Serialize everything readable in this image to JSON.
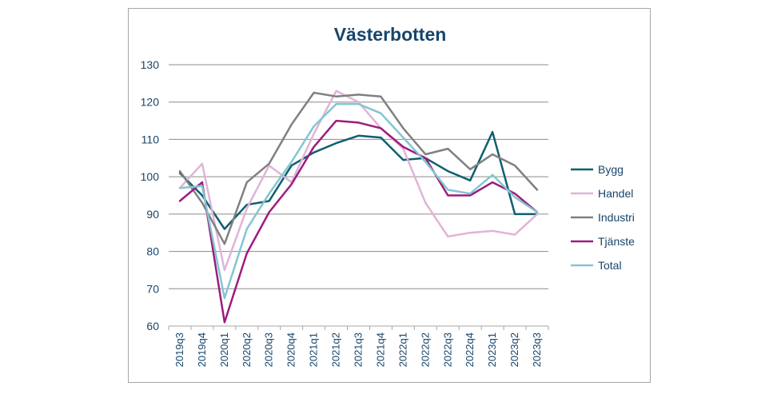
{
  "chart_data": {
    "type": "line",
    "title": "Västerbotten",
    "xlabel": "",
    "ylabel": "",
    "ylim": [
      60,
      130
    ],
    "yticks": [
      60,
      70,
      80,
      90,
      100,
      110,
      120,
      130
    ],
    "grid": "horizontal",
    "legend_position": "right",
    "categories": [
      "2019q3",
      "2019q4",
      "2020q1",
      "2020q2",
      "2020q3",
      "2020q4",
      "2021q1",
      "2021q2",
      "2021q3",
      "2021q4",
      "2022q1",
      "2022q2",
      "2022q3",
      "2022q4",
      "2023q1",
      "2023q2",
      "2023q3"
    ],
    "series": [
      {
        "name": "Bygg",
        "color": "#0e5f6f",
        "values": [
          101,
          95,
          86,
          92.5,
          93.5,
          103,
          106.5,
          109,
          111,
          110.5,
          104.5,
          105,
          101.5,
          99,
          112,
          90,
          90
        ]
      },
      {
        "name": "Handel",
        "color": "#e0b4d7",
        "values": [
          97,
          103.5,
          75,
          91.5,
          103,
          98.5,
          111.5,
          123,
          120,
          113,
          107.5,
          93,
          84,
          85,
          85.5,
          84.5,
          90
        ]
      },
      {
        "name": "Industri",
        "color": "#808080",
        "values": [
          101.5,
          93,
          82,
          98.5,
          103.5,
          114,
          122.5,
          121.5,
          122,
          121.5,
          113,
          106,
          107.5,
          102,
          106,
          103,
          96.5
        ]
      },
      {
        "name": "Tjänste",
        "color": "#9c1c7e",
        "values": [
          93.5,
          98.5,
          61,
          79.5,
          90.5,
          98,
          108,
          115,
          114.5,
          113,
          108,
          105,
          95,
          95,
          98.5,
          95.5,
          90.5
        ]
      },
      {
        "name": "Total",
        "color": "#82c6d1",
        "values": [
          97,
          97.5,
          67.5,
          86,
          95.5,
          104,
          113.5,
          119.5,
          119.5,
          117,
          110.5,
          104,
          96.5,
          95.5,
          100.5,
          94.5,
          90.5
        ]
      }
    ]
  }
}
